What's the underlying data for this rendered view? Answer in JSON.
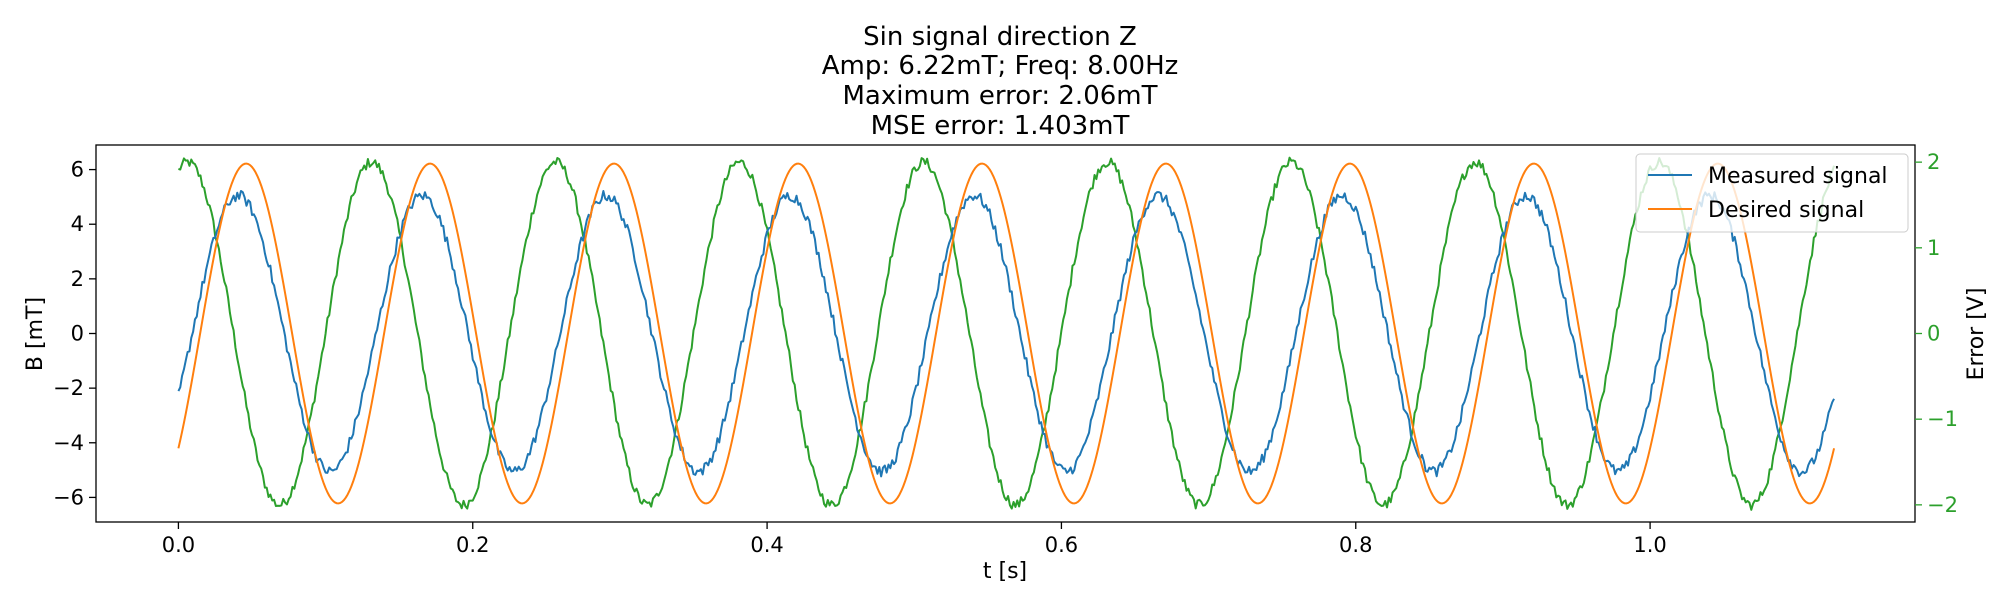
{
  "chart_data": {
    "type": "line",
    "title": [
      "Sin signal direction Z",
      "Amp: 6.22mT; Freq: 8.00Hz",
      "Maximum error: 2.06mT",
      "MSE error: 1.403mT"
    ],
    "xlabel": "t [s]",
    "ylabel": "B [mT]",
    "y2label": "Error [V]",
    "xlim": [
      -0.056,
      1.18
    ],
    "ylim": [
      -6.9,
      6.9
    ],
    "y2lim": [
      -2.2,
      2.2
    ],
    "x_ticks": [
      0.0,
      0.2,
      0.4,
      0.6,
      0.8,
      1.0
    ],
    "x_tick_labels": [
      "0.0",
      "0.2",
      "0.4",
      "0.6",
      "0.8",
      "1.0"
    ],
    "y_ticks": [
      -6,
      -4,
      -2,
      0,
      2,
      4,
      6
    ],
    "y_tick_labels": [
      "−6",
      "−4",
      "−2",
      "0",
      "2",
      "4",
      "6"
    ],
    "y2_ticks": [
      -2,
      -1,
      0,
      1,
      2
    ],
    "y2_tick_labels": [
      "−2",
      "−1",
      "0",
      "1",
      "2"
    ],
    "grid": false,
    "legend_position": "top-right",
    "x_start": 0.0,
    "x_end": 1.125,
    "series": [
      {
        "name": "Measured signal",
        "axis": "left",
        "color": "#1f77b4",
        "function": "sine",
        "amplitude": 5.05,
        "frequency_hz": 8.0,
        "phase_deg": -27,
        "noise": 0.08
      },
      {
        "name": "Desired signal",
        "axis": "left",
        "color": "#ff7f0e",
        "function": "sine",
        "amplitude": 6.22,
        "frequency_hz": 8.0,
        "phase_deg": -42.5,
        "noise": 0.0
      },
      {
        "name": "Error",
        "axis": "right",
        "color": "#2ca02c",
        "function": "sine",
        "amplitude": 2.0,
        "frequency_hz": 8.0,
        "phase_deg": 72,
        "noise": 0.06
      }
    ],
    "colors": {
      "measured": "#1f77b4",
      "desired": "#ff7f0e",
      "error_axis": "#2ca02c"
    }
  }
}
